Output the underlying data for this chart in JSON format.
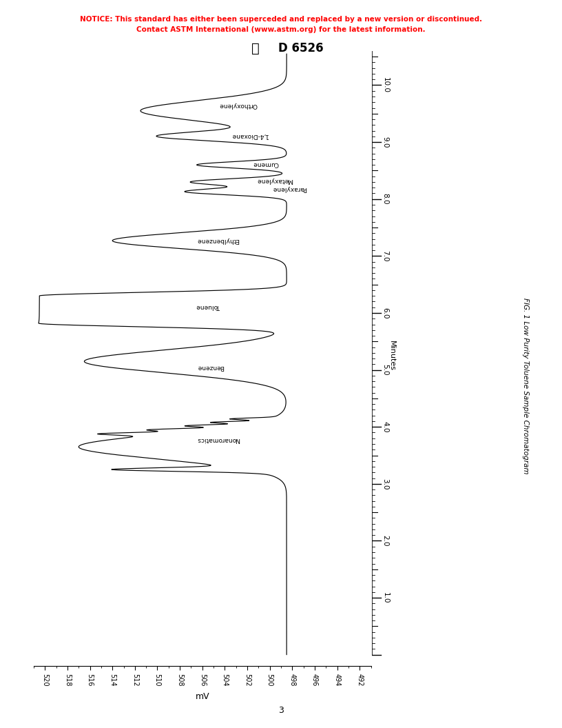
{
  "notice_line1": "NOTICE: This standard has either been superceded and replaced by a new version or discontinued.",
  "notice_line2": "Contact ASTM International (www.astm.org) for the latest information.",
  "astm_label": "D 6526",
  "figure_caption": "FIG. 1 Low Purity Toluene Sample Chromatogram",
  "xlabel": "mV",
  "ylabel": "Minutes",
  "page_number": "3",
  "x_ticks": [
    520,
    518,
    516,
    514,
    512,
    510,
    508,
    506,
    504,
    502,
    500,
    498,
    496,
    494,
    492
  ],
  "y_ticks": [
    1.0,
    2.0,
    3.0,
    4.0,
    5.0,
    6.0,
    7.0,
    8.0,
    9.0,
    10.0
  ],
  "xlim": [
    521,
    491
  ],
  "ylim": [
    -0.2,
    10.6
  ],
  "baseline_mv": 498.5,
  "background_color": "#ffffff",
  "line_color": "#000000",
  "notice_color": "#ff0000",
  "peak_labels": [
    {
      "name": "Nonaromatics",
      "t": 3.78,
      "x": 506.5
    },
    {
      "name": "Benzene",
      "t": 5.05,
      "x": 506.5
    },
    {
      "name": "Toluene",
      "t": 6.12,
      "x": 506.5
    },
    {
      "name": "Ethylbenzene",
      "t": 7.28,
      "x": 506.5
    },
    {
      "name": "Paraxylene",
      "t": 8.18,
      "x": 499.8
    },
    {
      "name": "Metaxylene",
      "t": 8.33,
      "x": 501.2
    },
    {
      "name": "Cumene",
      "t": 8.62,
      "x": 501.5
    },
    {
      "name": "1,4-Dioxane",
      "t": 9.12,
      "x": 503.5
    },
    {
      "name": "Orthoxylene",
      "t": 9.65,
      "x": 504.5
    }
  ]
}
